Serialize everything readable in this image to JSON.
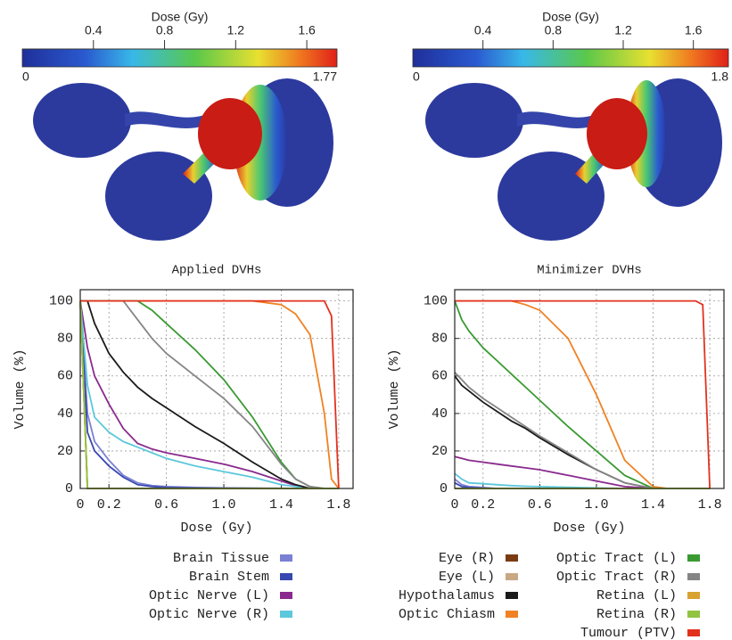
{
  "colorbars": [
    {
      "title": "Dose (Gy)",
      "ticks": [
        0.4,
        0.8,
        1.2,
        1.6
      ],
      "min": 0,
      "max": 1.77
    },
    {
      "title": "Dose (Gy)",
      "ticks": [
        0.4,
        0.8,
        1.2,
        1.6
      ],
      "min": 0,
      "max": 1.8
    }
  ],
  "chart_data": [
    {
      "type": "line",
      "title": "Applied DVHs",
      "x_label": "Dose (Gy)",
      "y_label": "Volume (%)",
      "x": [
        0,
        0.05,
        0.1,
        0.2,
        0.3,
        0.4,
        0.5,
        0.6,
        0.8,
        1.0,
        1.2,
        1.4,
        1.5,
        1.6,
        1.7,
        1.75,
        1.8
      ],
      "xlim": [
        0,
        1.9
      ],
      "xticks": [
        0,
        0.2,
        0.6,
        {
          "value": 1,
          "label": "1.0"
        },
        1.4,
        1.8
      ],
      "ylim": [
        0,
        106
      ],
      "yticks": [
        0,
        20,
        40,
        60,
        80,
        100
      ],
      "grid": true,
      "series": [
        {
          "name": "Brain Tissue",
          "color": "#7a80d2",
          "values": [
            100,
            40,
            25,
            15,
            7,
            3,
            1.5,
            1,
            0.5,
            0.3,
            0.2,
            0.1,
            0,
            0,
            0,
            0,
            0
          ]
        },
        {
          "name": "Brain Stem",
          "color": "#3848b0",
          "values": [
            100,
            30,
            20,
            12,
            6,
            2,
            1,
            0.5,
            0.3,
            0.2,
            0.1,
            0,
            0,
            0,
            0,
            0,
            0
          ]
        },
        {
          "name": "Optic Nerve (L)",
          "color": "#8a2a8e",
          "values": [
            100,
            75,
            60,
            45,
            32,
            24,
            21,
            19,
            16,
            13,
            9,
            4,
            1.5,
            0,
            0,
            0,
            0
          ]
        },
        {
          "name": "Optic Nerve (R)",
          "color": "#5cc8dc",
          "values": [
            100,
            55,
            38,
            30,
            25,
            22,
            19,
            16,
            12,
            9,
            6,
            2,
            1,
            0,
            0,
            0,
            0
          ]
        },
        {
          "name": "Eye (R)",
          "color": "#7a3a12",
          "values": [
            100,
            0,
            0,
            0,
            0,
            0,
            0,
            0,
            0,
            0,
            0,
            0,
            0,
            0,
            0,
            0,
            0
          ]
        },
        {
          "name": "Eye (L)",
          "color": "#c8a884",
          "values": [
            100,
            0,
            0,
            0,
            0,
            0,
            0,
            0,
            0,
            0,
            0,
            0,
            0,
            0,
            0,
            0,
            0
          ]
        },
        {
          "name": "Hypothalamus",
          "color": "#1a1a1a",
          "values": [
            100,
            100,
            88,
            72,
            62,
            54,
            48,
            43,
            33,
            24,
            14,
            5,
            2,
            0,
            0,
            0,
            0
          ]
        },
        {
          "name": "Optic Chiasm",
          "color": "#f08224",
          "values": [
            100,
            100,
            100,
            100,
            100,
            100,
            100,
            100,
            100,
            100,
            100,
            98,
            93,
            82,
            40,
            5,
            0
          ]
        },
        {
          "name": "Optic Tract (L)",
          "color": "#3a9a32",
          "values": [
            100,
            100,
            100,
            100,
            100,
            100,
            95,
            88,
            74,
            58,
            38,
            14,
            5,
            1,
            0,
            0,
            0
          ]
        },
        {
          "name": "Optic Tract (R)",
          "color": "#858585",
          "values": [
            100,
            100,
            100,
            100,
            100,
            90,
            80,
            72,
            60,
            48,
            33,
            13,
            5,
            1,
            0,
            0,
            0
          ]
        },
        {
          "name": "Retina (L)",
          "color": "#d8a232",
          "values": [
            100,
            0,
            0,
            0,
            0,
            0,
            0,
            0,
            0,
            0,
            0,
            0,
            0,
            0,
            0,
            0,
            0
          ]
        },
        {
          "name": "Retina (R)",
          "color": "#92c442",
          "values": [
            100,
            0,
            0,
            0,
            0,
            0,
            0,
            0,
            0,
            0,
            0,
            0,
            0,
            0,
            0,
            0,
            0
          ]
        },
        {
          "name": "Tumour (PTV)",
          "color": "#e2321e",
          "values": [
            100,
            100,
            100,
            100,
            100,
            100,
            100,
            100,
            100,
            100,
            100,
            100,
            100,
            100,
            100,
            92,
            0
          ]
        }
      ]
    },
    {
      "type": "line",
      "title": "Minimizer DVHs",
      "x_label": "Dose (Gy)",
      "y_label": "Volume (%)",
      "x": [
        0,
        0.05,
        0.1,
        0.2,
        0.3,
        0.4,
        0.5,
        0.6,
        0.8,
        1.0,
        1.2,
        1.4,
        1.5,
        1.6,
        1.7,
        1.75,
        1.8
      ],
      "xlim": [
        0,
        1.9
      ],
      "xticks": [
        0,
        0.2,
        0.6,
        {
          "value": 1,
          "label": "1.0"
        },
        1.4,
        1.8
      ],
      "ylim": [
        0,
        106
      ],
      "yticks": [
        0,
        20,
        40,
        60,
        80,
        100
      ],
      "grid": true,
      "series": [
        {
          "color": "#7a80d2",
          "values": [
            5,
            2,
            1,
            0.5,
            0,
            0,
            0,
            0,
            0,
            0,
            0,
            0,
            0,
            0,
            0,
            0,
            0
          ]
        },
        {
          "color": "#3848b0",
          "values": [
            3,
            1,
            0.5,
            0.2,
            0,
            0,
            0,
            0,
            0,
            0,
            0,
            0,
            0,
            0,
            0,
            0,
            0
          ]
        },
        {
          "color": "#8a2a8e",
          "values": [
            17,
            16,
            15,
            14,
            13,
            12,
            11,
            10,
            7,
            4,
            1,
            0,
            0,
            0,
            0,
            0,
            0
          ]
        },
        {
          "color": "#5cc8dc",
          "values": [
            8,
            5,
            3,
            2.5,
            2,
            1.5,
            1.2,
            1,
            0.6,
            0.3,
            0,
            0,
            0,
            0,
            0,
            0,
            0
          ]
        },
        {
          "color": "#7a3a12",
          "values": [
            0,
            0,
            0,
            0,
            0,
            0,
            0,
            0,
            0,
            0,
            0,
            0,
            0,
            0,
            0,
            0,
            0
          ]
        },
        {
          "color": "#c8a884",
          "values": [
            0,
            0,
            0,
            0,
            0,
            0,
            0,
            0,
            0,
            0,
            0,
            0,
            0,
            0,
            0,
            0,
            0
          ]
        },
        {
          "color": "#1a1a1a",
          "values": [
            60,
            55,
            52,
            46,
            41,
            36,
            32,
            27,
            18,
            10,
            3,
            0,
            0,
            0,
            0,
            0,
            0
          ]
        },
        {
          "color": "#f08224",
          "values": [
            100,
            100,
            100,
            100,
            100,
            100,
            98,
            95,
            80,
            50,
            15,
            1,
            0,
            0,
            0,
            0,
            0
          ]
        },
        {
          "color": "#3a9a32",
          "values": [
            100,
            90,
            84,
            75,
            68,
            61,
            54,
            47,
            33,
            20,
            7,
            0,
            0,
            0,
            0,
            0,
            0
          ]
        },
        {
          "color": "#858585",
          "values": [
            62,
            58,
            54,
            48,
            43,
            38,
            33,
            28,
            19,
            10,
            3,
            0,
            0,
            0,
            0,
            0,
            0
          ]
        },
        {
          "color": "#d8a232",
          "values": [
            0,
            0,
            0,
            0,
            0,
            0,
            0,
            0,
            0,
            0,
            0,
            0,
            0,
            0,
            0,
            0,
            0
          ]
        },
        {
          "color": "#92c442",
          "values": [
            0,
            0,
            0,
            0,
            0,
            0,
            0,
            0,
            0,
            0,
            0,
            0,
            0,
            0,
            0,
            0,
            0
          ]
        },
        {
          "color": "#e2321e",
          "values": [
            100,
            100,
            100,
            100,
            100,
            100,
            100,
            100,
            100,
            100,
            100,
            100,
            100,
            100,
            100,
            98,
            0
          ]
        }
      ]
    }
  ]
}
